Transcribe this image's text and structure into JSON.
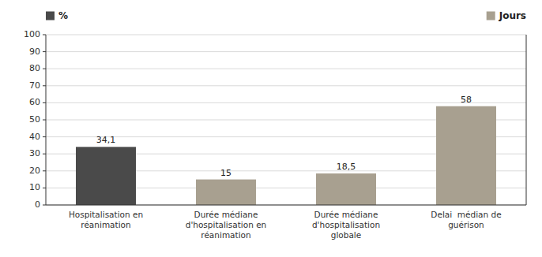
{
  "chart_data": {
    "type": "bar",
    "categories": [
      "Hospitalisation en\nréanimation",
      "Durée médiane\nd'hospitalisation en\nréanimation",
      "Durée médiane\nd'hospitalisation\nglobale",
      "Delai  médian de\nguérison"
    ],
    "series": [
      {
        "name": "%",
        "color": "#4a4a4a",
        "values": [
          34.1,
          null,
          null,
          null
        ],
        "value_labels": [
          "34,1",
          null,
          null,
          null
        ]
      },
      {
        "name": "Jours",
        "color": "#a8a090",
        "values": [
          null,
          15,
          18.5,
          58
        ],
        "value_labels": [
          null,
          "15",
          "18,5",
          "58"
        ]
      }
    ],
    "ylim": [
      0,
      100
    ],
    "yticks": [
      0,
      10,
      20,
      30,
      40,
      50,
      60,
      70,
      80,
      90,
      100
    ],
    "grid": true,
    "legend": "top",
    "data_labels": true
  }
}
